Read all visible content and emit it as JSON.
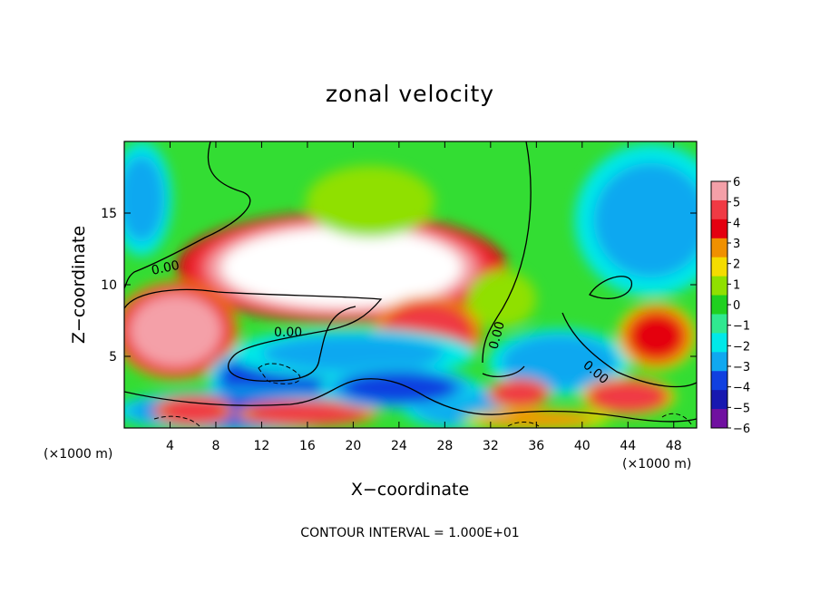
{
  "chart_data": {
    "type": "heatmap",
    "title": "zonal velocity",
    "xlabel": "X−coordinate",
    "ylabel": "Z−coordinate",
    "x_unit": "(×1000 m)",
    "y_unit": "(×1000 m)",
    "xlim": [
      0,
      50
    ],
    "ylim": [
      0,
      20
    ],
    "x_ticks": [
      4,
      8,
      12,
      16,
      20,
      24,
      28,
      32,
      36,
      40,
      44,
      48
    ],
    "y_ticks": [
      5,
      10,
      15
    ],
    "colorbar": {
      "levels": [
        6,
        5,
        4,
        3,
        2,
        1,
        0,
        -1,
        -2,
        -3,
        -4,
        -5,
        -6
      ],
      "labels": [
        "6",
        "5",
        "4",
        "3",
        "2",
        "1",
        "0",
        "−1",
        "−2",
        "−3",
        "−4",
        "−5",
        "−6"
      ],
      "colors": [
        "#f4a0a8",
        "#f03a44",
        "#e40010",
        "#f09000",
        "#f4dc00",
        "#90e000",
        "#20d020",
        "#30e890",
        "#00e8e8",
        "#10a8f0",
        "#1040e0",
        "#1818b0",
        "#7010a0"
      ]
    },
    "contour_labels": [
      "0.00",
      "0.00",
      "0.00",
      "0.00"
    ],
    "footer": "CONTOUR INTERVAL = 1.000E+01",
    "field_features": [
      {
        "x": 19,
        "z": 11.2,
        "w": 21,
        "h": 5.6,
        "value": 7
      },
      {
        "x": 4.5,
        "z": 6.8,
        "w": 8,
        "h": 5,
        "value": 6
      },
      {
        "x": 13.5,
        "z": 3.4,
        "w": 9,
        "h": 3.6,
        "value": -4.5
      },
      {
        "x": 26.5,
        "z": 6.6,
        "w": 7,
        "h": 3.8,
        "value": 5
      },
      {
        "x": 20,
        "z": 5.2,
        "w": 16,
        "h": 2.6,
        "value": -3
      },
      {
        "x": 38,
        "z": 4.6,
        "w": 9,
        "h": 3.4,
        "value": -3.5
      },
      {
        "x": 46.5,
        "z": 6.4,
        "w": 5,
        "h": 3.4,
        "value": 4
      },
      {
        "x": 46,
        "z": 14.5,
        "w": 10,
        "h": 8,
        "value": -2.8
      },
      {
        "x": 1.5,
        "z": 16,
        "w": 4,
        "h": 6,
        "value": -3
      },
      {
        "x": 10,
        "z": 1.2,
        "w": 16,
        "h": 2.2,
        "value": -4
      },
      {
        "x": 6,
        "z": 1.2,
        "w": 5,
        "h": 1.6,
        "value": 5
      },
      {
        "x": 16,
        "z": 1.0,
        "w": 9,
        "h": 1.4,
        "value": 5
      },
      {
        "x": 29,
        "z": 1.6,
        "w": 7,
        "h": 2.4,
        "value": -3.5
      },
      {
        "x": 34.5,
        "z": 2.4,
        "w": 4,
        "h": 1.6,
        "value": 5
      },
      {
        "x": 44,
        "z": 2.2,
        "w": 6,
        "h": 2,
        "value": 4.5
      },
      {
        "x": 36,
        "z": 0.6,
        "w": 10,
        "h": 1.1,
        "value": 2.5
      },
      {
        "x": 24,
        "z": 2.8,
        "w": 10,
        "h": 2.2,
        "value": -4
      },
      {
        "x": 21.5,
        "z": 15.8,
        "w": 9,
        "h": 4,
        "value": 1.3
      },
      {
        "x": 33,
        "z": 9,
        "w": 6,
        "h": 4,
        "value": 0.5
      }
    ]
  }
}
